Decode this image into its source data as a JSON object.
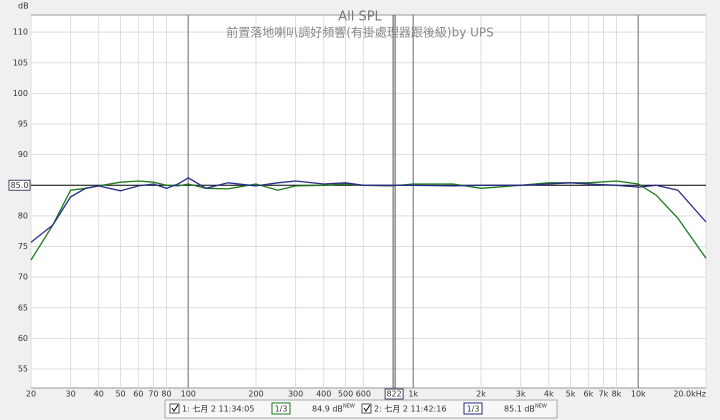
{
  "chart_data": {
    "type": "line",
    "title": "All SPL",
    "subtitle": "前置落地喇叭調好頻響(有掛處理器跟後級)by UPS",
    "y_label": "dB",
    "log_x": true,
    "grid": true,
    "xlim": [
      20,
      20000
    ],
    "ylim": [
      51.9,
      112.8
    ],
    "xticks": [
      20,
      30,
      40,
      50,
      60,
      70,
      80,
      100,
      200,
      300,
      400,
      500,
      600,
      {
        "value": 1000,
        "label": "1k"
      },
      {
        "value": 2000,
        "label": "2k"
      },
      {
        "value": 3000,
        "label": "3k"
      },
      {
        "value": 4000,
        "label": "4k"
      },
      {
        "value": 5000,
        "label": "5k"
      },
      {
        "value": 6000,
        "label": "6k"
      },
      {
        "value": 7000,
        "label": "7k"
      },
      {
        "value": 8000,
        "label": "8k"
      },
      {
        "value": 10000,
        "label": "10k"
      },
      {
        "value": 20000,
        "label": "20.0kHz"
      }
    ],
    "yticks": [
      55,
      60,
      65,
      70,
      75,
      80,
      90,
      95,
      100,
      105,
      110
    ],
    "cursor_x": 822,
    "cursor_y": {
      "value": 85,
      "label": "85.0"
    },
    "x": [
      20,
      25,
      30,
      35,
      40,
      50,
      60,
      70,
      80,
      90,
      100,
      120,
      150,
      200,
      250,
      300,
      400,
      500,
      600,
      800,
      1000,
      1500,
      2000,
      3000,
      4000,
      5000,
      6000,
      8000,
      10000,
      12000,
      15000,
      20000
    ],
    "series": [
      {
        "name": "1: 七月 2 11:34:05",
        "color": "#1a7a1a",
        "smoothing": "1/3",
        "level_label": "84.9 dB",
        "badge": "NEW",
        "values": [
          72.8,
          78.5,
          84.2,
          84.5,
          84.9,
          85.5,
          85.7,
          85.5,
          85.0,
          84.9,
          85.2,
          84.5,
          84.4,
          85.2,
          84.2,
          84.9,
          85.0,
          85.2,
          85.0,
          84.9,
          85.2,
          85.2,
          84.5,
          85.0,
          85.4,
          85.4,
          85.4,
          85.7,
          85.2,
          83.4,
          79.6,
          73.1
        ]
      },
      {
        "name": "2: 七月 2 11:42:16",
        "color": "#2a2a8a",
        "smoothing": "1/3",
        "level_label": "85.1 dB",
        "badge": "NEW",
        "values": [
          75.7,
          78.5,
          83.1,
          84.5,
          84.9,
          84.1,
          84.9,
          85.2,
          84.5,
          85.2,
          86.2,
          84.5,
          85.4,
          84.9,
          85.4,
          85.7,
          85.2,
          85.4,
          85.0,
          85.0,
          85.0,
          84.9,
          85.0,
          85.0,
          85.2,
          85.4,
          85.2,
          85.0,
          84.7,
          85.0,
          84.2,
          79.0
        ]
      }
    ]
  }
}
